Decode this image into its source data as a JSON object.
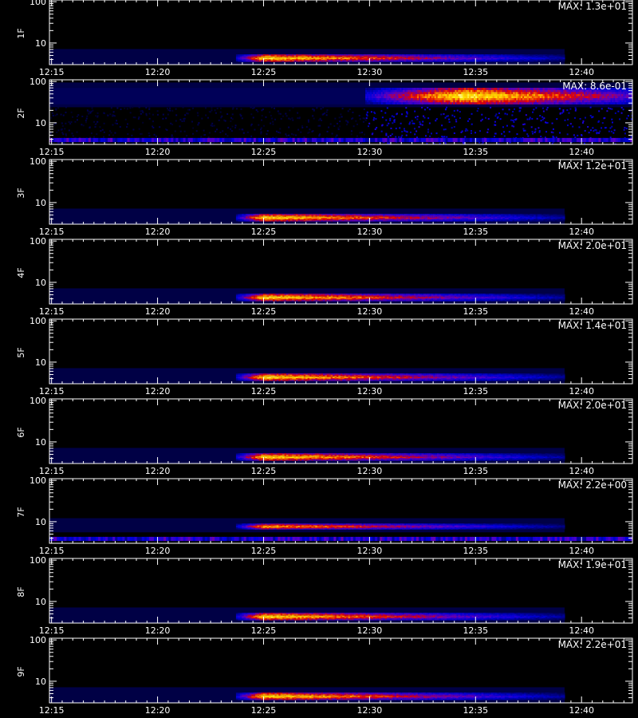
{
  "chart_data": {
    "type": "heatmap",
    "colorscale": [
      "#000000",
      "#00005a",
      "#0000dc",
      "#5a00c8",
      "#e60000",
      "#ffa000",
      "#ffe600",
      "#ffffc8"
    ],
    "x_ticks": [
      "12:15",
      "12:20",
      "12:25",
      "12:30",
      "12:35",
      "12:40"
    ],
    "x_tick_minutes": [
      15,
      20,
      25,
      30,
      35,
      40
    ],
    "x_range_minutes": [
      14.9,
      42.4
    ],
    "y_scale": "log",
    "y_range": [
      3,
      110
    ],
    "y_ticks": [
      "100",
      "10"
    ],
    "y_tick_values": [
      100,
      10
    ],
    "xlabel": "",
    "panels": [
      {
        "label": "1F",
        "max": "MAX: 1.3e+01",
        "band": [
          3.5,
          5.3
        ],
        "peak": 0.9,
        "t_start": 23.7,
        "t_peak": 25.0,
        "t_end": 39.2,
        "t_fade": 35.5
      },
      {
        "label": "2F",
        "max": "MAX: 8.6e-01",
        "band": [
          28,
          70
        ],
        "peak": 0.95,
        "t_start": 29.8,
        "t_peak": 34.5,
        "t_end": 42.4,
        "t_fade": 42.4
      },
      {
        "label": "3F",
        "max": "MAX: 1.2e+01",
        "band": [
          3.5,
          5.3
        ],
        "peak": 0.9,
        "t_start": 23.7,
        "t_peak": 25.0,
        "t_end": 39.2,
        "t_fade": 35.5
      },
      {
        "label": "4F",
        "max": "MAX: 2.0e+01",
        "band": [
          3.5,
          5.3
        ],
        "peak": 0.9,
        "t_start": 23.7,
        "t_peak": 25.0,
        "t_end": 39.2,
        "t_fade": 35.5
      },
      {
        "label": "5F",
        "max": "MAX: 1.4e+01",
        "band": [
          3.5,
          5.3
        ],
        "peak": 0.9,
        "t_start": 23.7,
        "t_peak": 25.0,
        "t_end": 39.2,
        "t_fade": 35.5
      },
      {
        "label": "6F",
        "max": "MAX: 2.0e+01",
        "band": [
          3.5,
          5.3
        ],
        "peak": 0.9,
        "t_start": 23.7,
        "t_peak": 25.0,
        "t_end": 39.2,
        "t_fade": 35.5
      },
      {
        "label": "7F",
        "max": "MAX: 2.2e+00",
        "band": [
          6.5,
          9
        ],
        "peak": 0.8,
        "t_start": 23.7,
        "t_peak": 25.0,
        "t_end": 39.2,
        "t_fade": 35.5
      },
      {
        "label": "8F",
        "max": "MAX: 1.9e+01",
        "band": [
          3.5,
          5.3
        ],
        "peak": 0.9,
        "t_start": 23.7,
        "t_peak": 25.0,
        "t_end": 39.2,
        "t_fade": 35.5
      },
      {
        "label": "9F",
        "max": "MAX: 2.2e+01",
        "band": [
          3.5,
          5.3
        ],
        "peak": 0.9,
        "t_start": 23.7,
        "t_peak": 25.0,
        "t_end": 39.2,
        "t_fade": 35.5
      }
    ]
  }
}
